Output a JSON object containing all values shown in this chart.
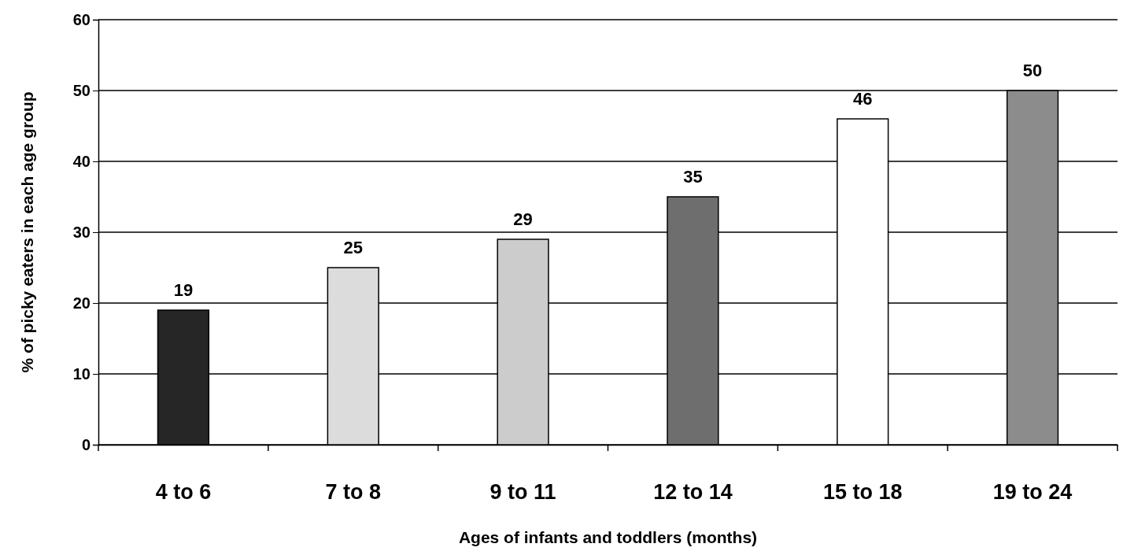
{
  "chart_data": {
    "type": "bar",
    "xlabel": "Ages of infants and toddlers (months)",
    "ylabel": "% of picky eaters in each age group",
    "categories": [
      "4 to 6",
      "7 to 8",
      "9 to 11",
      "12 to 14",
      "15 to 18",
      "19 to 24"
    ],
    "values": [
      19,
      25,
      29,
      35,
      46,
      50
    ],
    "colors": [
      "#262626",
      "#dcdcdc",
      "#cccccc",
      "#6e6e6e",
      "#ffffff",
      "#8c8c8c"
    ],
    "ylim": [
      0,
      60
    ],
    "yticks": [
      0,
      10,
      20,
      30,
      40,
      50,
      60
    ],
    "grid": "y",
    "data_labels": true
  }
}
